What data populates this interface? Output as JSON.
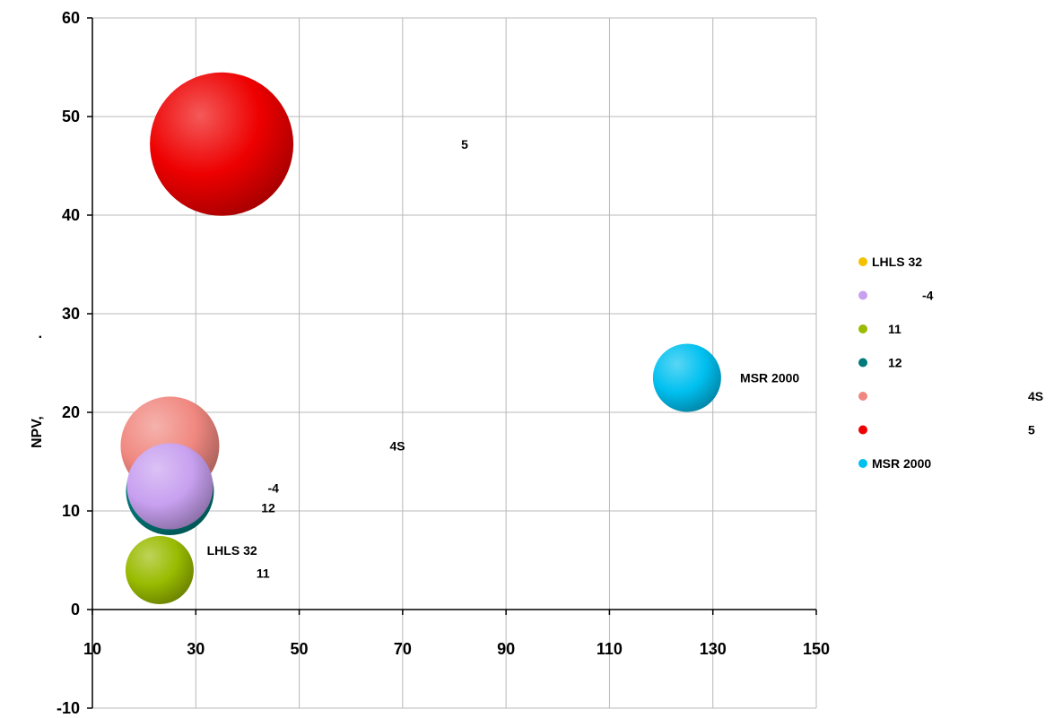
{
  "chart_data": {
    "type": "bubble",
    "ylabel": "NPV,",
    "ylabel_extra": ".",
    "xlim": [
      10,
      150
    ],
    "ylim": [
      -10,
      60
    ],
    "xticks": [
      10,
      30,
      50,
      70,
      90,
      110,
      130,
      150
    ],
    "yticks": [
      -10,
      0,
      10,
      20,
      30,
      40,
      50,
      60
    ],
    "grid": true,
    "legend_position": "right",
    "series": [
      {
        "legend": "LHLS 32",
        "label_left": "LHLS 32",
        "label_right": "",
        "color": "#f5c000",
        "x": 23,
        "y": 4,
        "size": 38,
        "visible": false
      },
      {
        "legend": "-4",
        "label_left": "",
        "label_right": "-4",
        "color": "#c8a0f0",
        "x": 25,
        "y": 12.5,
        "size": 48,
        "visible": true
      },
      {
        "legend": "11",
        "label_left": "",
        "label_right": "11",
        "color": "#99bb00",
        "x": 23,
        "y": 4,
        "size": 38,
        "visible": true
      },
      {
        "legend": "12",
        "label_left": "",
        "label_right": "12",
        "color": "#007a7a",
        "x": 25,
        "y": 12,
        "size": 49,
        "visible": true
      },
      {
        "legend": "",
        "label_left": "",
        "label_right": "4S",
        "color": "#f08880",
        "x": 25,
        "y": 16.6,
        "size": 55,
        "visible": true
      },
      {
        "legend": "",
        "label_left": "",
        "label_right": "5",
        "color": "#ee0000",
        "x": 35,
        "y": 47.2,
        "size": 80,
        "visible": true
      },
      {
        "legend": "MSR 2000",
        "label_left": "",
        "label_right": "MSR 2000",
        "color": "#00c0f0",
        "x": 125,
        "y": 23.5,
        "size": 38,
        "visible": true
      }
    ],
    "data_labels": [
      {
        "text": "LHLS 32",
        "x": 37,
        "y": 6
      },
      {
        "text": "11",
        "x": 43,
        "y": 3.7
      },
      {
        "text": "-4",
        "x": 45,
        "y": 12.3
      },
      {
        "text": "12",
        "x": 44,
        "y": 10.3
      },
      {
        "text": "4S",
        "x": 69,
        "y": 16.6
      },
      {
        "text": "5",
        "x": 82,
        "y": 47.2
      },
      {
        "text": "MSR 2000",
        "x": 141,
        "y": 23.5
      }
    ],
    "legend_entries": [
      {
        "marker": "LHLS 32",
        "name": "",
        "suffix": ""
      },
      {
        "marker": "",
        "name": "-4",
        "suffix": ""
      },
      {
        "marker": "",
        "name": "11",
        "suffix": ""
      },
      {
        "marker": "",
        "name": "12",
        "suffix": ""
      },
      {
        "marker": "",
        "name": "",
        "suffix": "4S"
      },
      {
        "marker": "",
        "name": "",
        "suffix": "5"
      },
      {
        "marker": "MSR 2000",
        "name": "",
        "suffix": ""
      }
    ],
    "legend_colors": [
      "#f5c000",
      "#c8a0f0",
      "#99bb00",
      "#007a7a",
      "#f08880",
      "#ee0000",
      "#00c0f0"
    ]
  }
}
